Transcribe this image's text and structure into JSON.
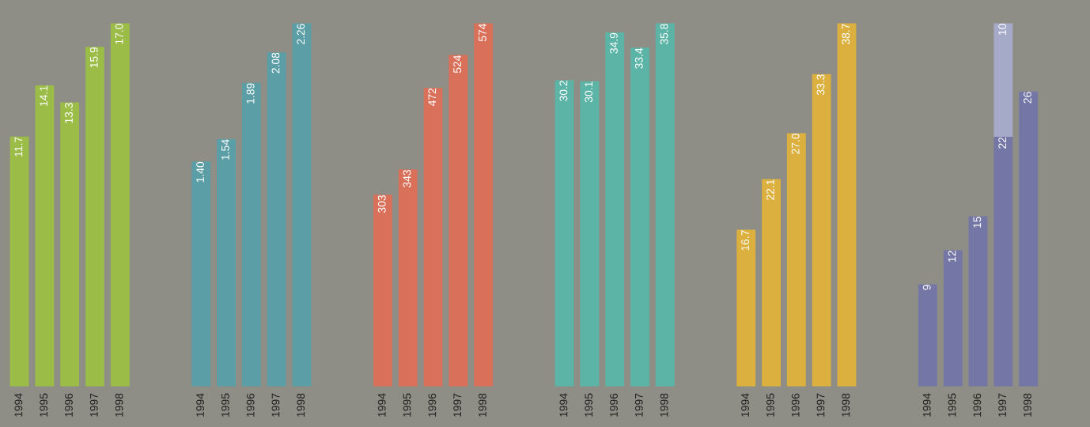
{
  "chart_data": [
    {
      "type": "bar",
      "categories": [
        "1994",
        "1995",
        "1996",
        "1997",
        "1998"
      ],
      "tick_labels": "x",
      "series": [
        {
          "color": "#9cbc48",
          "values": [
            11.7,
            14.1,
            13.3,
            15.9,
            17.0
          ],
          "value_labels": [
            "11.7",
            "14.1",
            "13.3",
            "15.9",
            "17.0"
          ]
        }
      ]
    },
    {
      "type": "bar",
      "categories": [
        "1994",
        "1995",
        "1996",
        "1997",
        "1998"
      ],
      "tick_labels": "x",
      "series": [
        {
          "color": "#5c9ea6",
          "values": [
            1.4,
            1.54,
            1.89,
            2.08,
            2.26
          ],
          "value_labels": [
            "1.40",
            "1.54",
            "1.89",
            "2.08",
            "2.26"
          ]
        }
      ]
    },
    {
      "type": "bar",
      "categories": [
        "1994",
        "1995",
        "1996",
        "1997",
        "1998"
      ],
      "tick_labels": "x",
      "series": [
        {
          "color": "#d8705a",
          "values": [
            303,
            343,
            472,
            524,
            574
          ],
          "value_labels": [
            "303",
            "343",
            "472",
            "524",
            "574"
          ]
        }
      ]
    },
    {
      "type": "bar",
      "categories": [
        "1994",
        "1995",
        "1996",
        "1997",
        "1998"
      ],
      "tick_labels": "x",
      "series": [
        {
          "color": "#5cb4a6",
          "values": [
            30.2,
            30.1,
            34.9,
            33.4,
            35.8
          ],
          "value_labels": [
            "30.2",
            "30.1",
            "34.9",
            "33.4",
            "35.8"
          ]
        }
      ]
    },
    {
      "type": "bar",
      "categories": [
        "1994",
        "1995",
        "1996",
        "1997",
        "1998"
      ],
      "tick_labels": "x",
      "series": [
        {
          "color": "#dcb03e",
          "values": [
            16.7,
            22.1,
            27.0,
            33.3,
            38.7
          ],
          "value_labels": [
            "16.7",
            "22.1",
            "27.0",
            "33.3",
            "38.7"
          ]
        }
      ]
    },
    {
      "type": "bar",
      "categories": [
        "1994",
        "1995",
        "1996",
        "1997",
        "1998"
      ],
      "tick_labels": "x",
      "stacked": true,
      "series": [
        {
          "color": "#7476a6",
          "values": [
            9,
            12,
            15,
            22,
            26
          ],
          "value_labels": [
            "9",
            "12",
            "15",
            "22",
            "26"
          ]
        },
        {
          "color": "#a4aac8",
          "values": [
            null,
            null,
            null,
            10,
            null
          ],
          "value_labels": [
            null,
            null,
            null,
            "10",
            null
          ]
        }
      ]
    }
  ]
}
